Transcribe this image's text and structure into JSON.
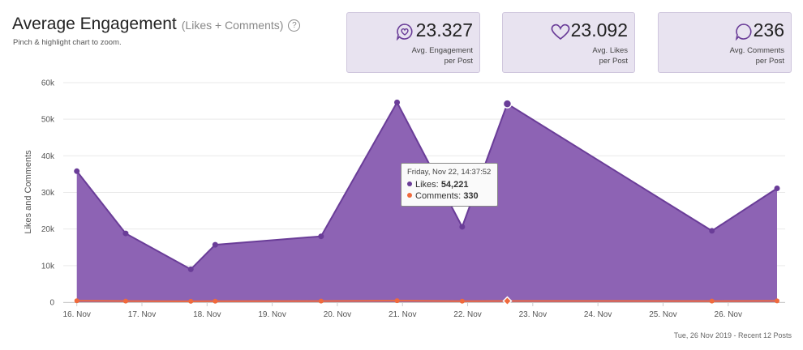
{
  "header": {
    "title": "Average Engagement",
    "subtitle": "(Likes + Comments)",
    "help_glyph": "?",
    "hint": "Pinch & highlight chart to zoom."
  },
  "cards": [
    {
      "icon": "engagement-heart-bubble-icon",
      "value": "23.327",
      "label_line1": "Avg. Engagement",
      "label_line2": "per Post"
    },
    {
      "icon": "heart-icon",
      "value": "23.092",
      "label_line1": "Avg. Likes",
      "label_line2": "per Post"
    },
    {
      "icon": "comment-bubble-icon",
      "value": "236",
      "label_line1": "Avg. Comments",
      "label_line2": "per Post"
    }
  ],
  "colors": {
    "likes_fill": "#8d63b4",
    "likes_line": "#6a3d98",
    "comments": "#f06a3c",
    "grid": "#e9e9e9",
    "card_bg": "#e8e3f0"
  },
  "tooltip": {
    "date": "Friday, Nov 22, 14:37:52",
    "likes_label": "Likes:",
    "likes_value": "54,221",
    "comments_label": "Comments:",
    "comments_value": "330"
  },
  "footer": "Tue, 26 Nov 2019 - Recent 12 Posts",
  "chart_data": {
    "type": "area",
    "ylabel": "Likes and Comments",
    "ylim": [
      0,
      60000
    ],
    "yticks": [
      0,
      10000,
      20000,
      30000,
      40000,
      50000,
      60000
    ],
    "ytick_labels": [
      "0",
      "10k",
      "20k",
      "30k",
      "40k",
      "50k",
      "60k"
    ],
    "xlim": [
      "2019-11-15T22:00",
      "2019-11-26T18:00"
    ],
    "xtick_labels": [
      "16. Nov",
      "17. Nov",
      "18. Nov",
      "19. Nov",
      "20. Nov",
      "21. Nov",
      "22. Nov",
      "23. Nov",
      "24. Nov",
      "25. Nov",
      "26. Nov"
    ],
    "x": [
      "2019-11-16T00:00",
      "2019-11-16T18:00",
      "2019-11-17T18:00",
      "2019-11-18T03:00",
      "2019-11-19T18:00",
      "2019-11-20T22:00",
      "2019-11-21T22:00",
      "2019-11-22T14:37",
      "2019-11-25T18:00",
      "2019-11-26T18:00"
    ],
    "series": [
      {
        "name": "Likes",
        "values": [
          35800,
          18800,
          9000,
          15700,
          18000,
          54600,
          20600,
          54221,
          19500,
          31100
        ]
      },
      {
        "name": "Comments",
        "values": [
          400,
          300,
          250,
          280,
          300,
          420,
          280,
          330,
          300,
          350
        ]
      }
    ],
    "grid": true,
    "highlighted_index": 7
  }
}
